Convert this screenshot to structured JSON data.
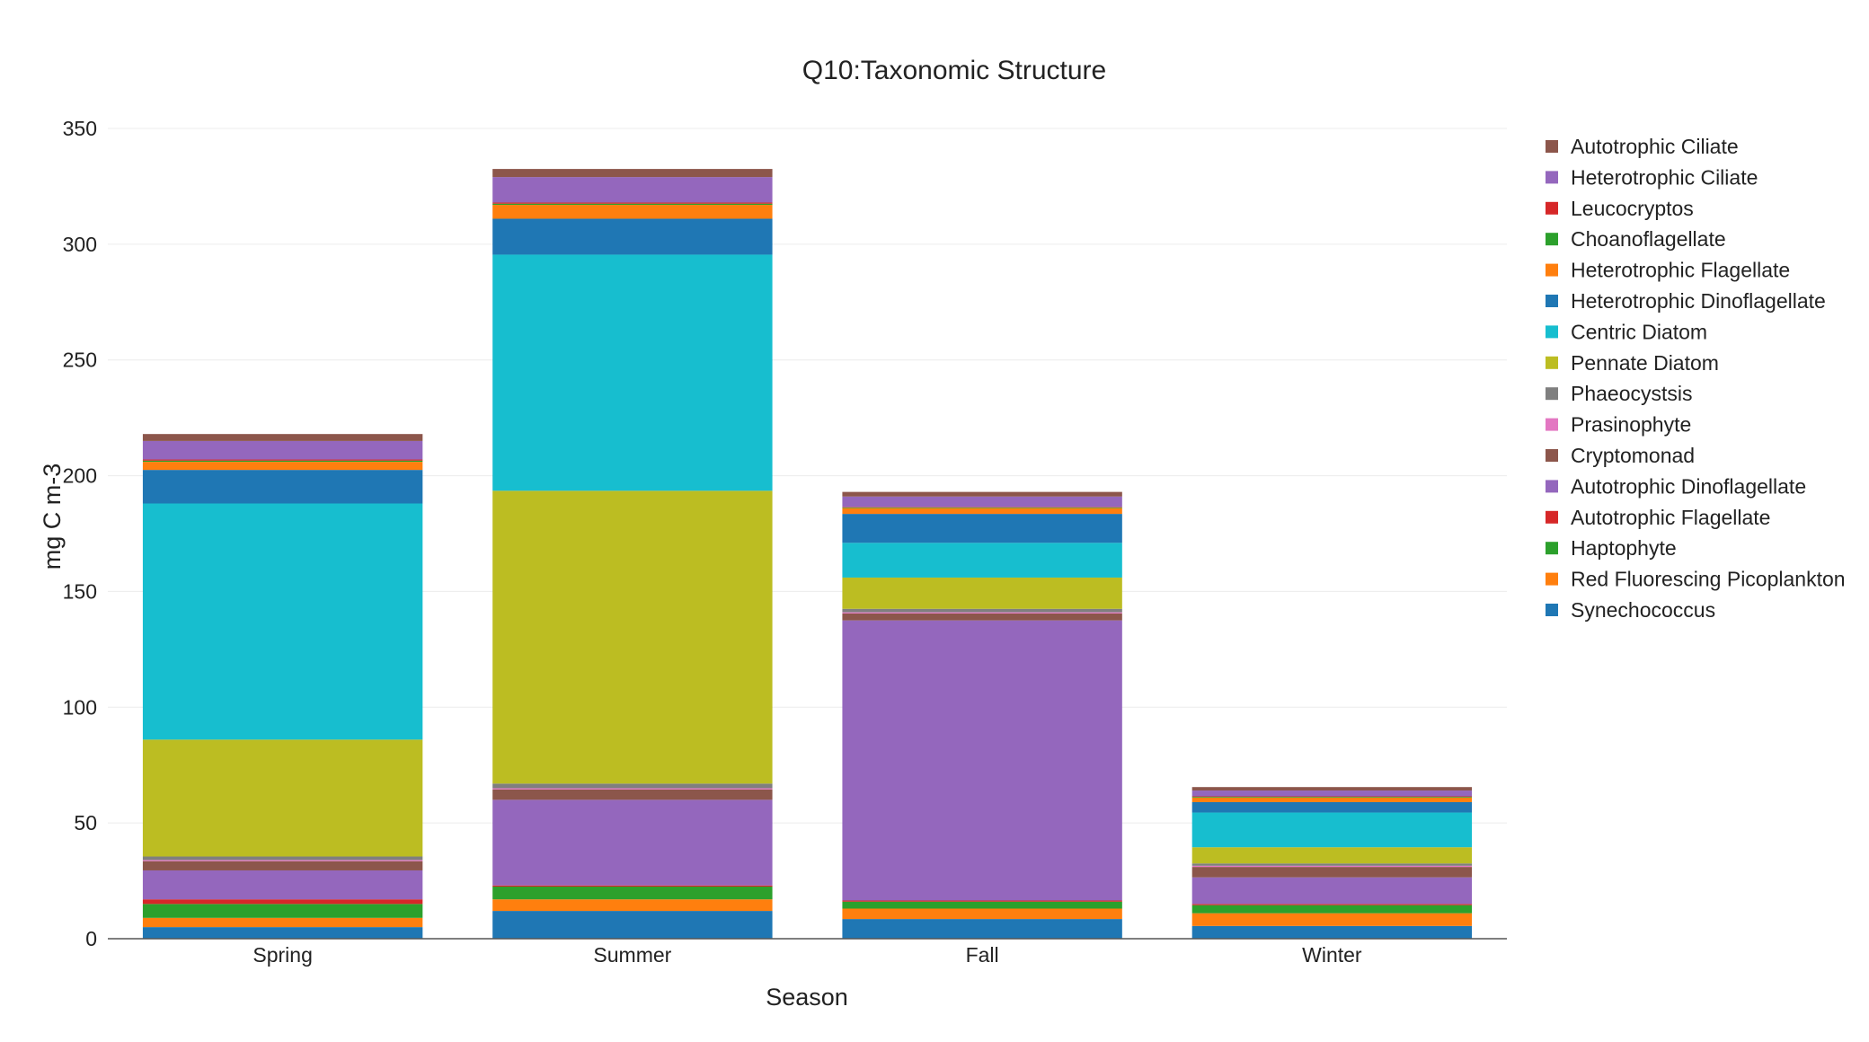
{
  "chart_data": {
    "type": "bar",
    "stacked": true,
    "title": "Q10:Taxonomic Structure",
    "xlabel": "Season",
    "ylabel": "mg C m-3",
    "ylim": [
      0,
      350
    ],
    "yticks": [
      0,
      50,
      100,
      150,
      200,
      250,
      300,
      350
    ],
    "grid": true,
    "legend_position": "right",
    "categories": [
      "Spring",
      "Summer",
      "Fall",
      "Winter"
    ],
    "series": [
      {
        "name": "Synechococcus",
        "color": "#1f77b4",
        "values": [
          5.0,
          12.0,
          8.5,
          5.5
        ]
      },
      {
        "name": "Red Fluorescing Picoplankton",
        "color": "#ff7f0e",
        "values": [
          4.0,
          5.0,
          4.5,
          5.5
        ]
      },
      {
        "name": "Haptophyte",
        "color": "#2ca02c",
        "values": [
          6.0,
          5.5,
          3.0,
          3.5
        ]
      },
      {
        "name": "Autotrophic Flagellate",
        "color": "#d62728",
        "values": [
          2.0,
          0.5,
          0.5,
          0.5
        ]
      },
      {
        "name": "Autotrophic Dinoflagellate",
        "color": "#9467bd",
        "values": [
          12.5,
          37.0,
          121.0,
          11.5
        ]
      },
      {
        "name": "Cryptomonad",
        "color": "#8c564b",
        "values": [
          4.0,
          4.5,
          3.0,
          4.5
        ]
      },
      {
        "name": "Prasinophyte",
        "color": "#e377c2",
        "values": [
          0.5,
          0.5,
          0.5,
          0.5
        ]
      },
      {
        "name": "Phaeocystsis",
        "color": "#7f7f7f",
        "values": [
          1.5,
          2.0,
          1.5,
          1.0
        ]
      },
      {
        "name": "Pennate Diatom",
        "color": "#bcbd22",
        "values": [
          50.5,
          126.5,
          13.5,
          7.0
        ]
      },
      {
        "name": "Centric Diatom",
        "color": "#17becf",
        "values": [
          102.0,
          102.0,
          15.0,
          15.0
        ]
      },
      {
        "name": "Heterotrophic Dinoflagellate",
        "color": "#1f77b4",
        "values": [
          14.5,
          15.5,
          12.5,
          4.5
        ]
      },
      {
        "name": "Heterotrophic Flagellate",
        "color": "#ff7f0e",
        "values": [
          3.5,
          6.0,
          2.5,
          2.0
        ]
      },
      {
        "name": "Choanoflagellate",
        "color": "#2ca02c",
        "values": [
          0.5,
          0.5,
          0.3,
          0.3
        ]
      },
      {
        "name": "Leucocryptos",
        "color": "#d62728",
        "values": [
          0.5,
          0.5,
          0.2,
          0.2
        ]
      },
      {
        "name": "Heterotrophic Ciliate",
        "color": "#9467bd",
        "values": [
          8.0,
          11.0,
          4.5,
          2.5
        ]
      },
      {
        "name": "Autotrophic Ciliate",
        "color": "#8c564b",
        "values": [
          3.0,
          3.5,
          2.0,
          1.5
        ]
      }
    ]
  }
}
